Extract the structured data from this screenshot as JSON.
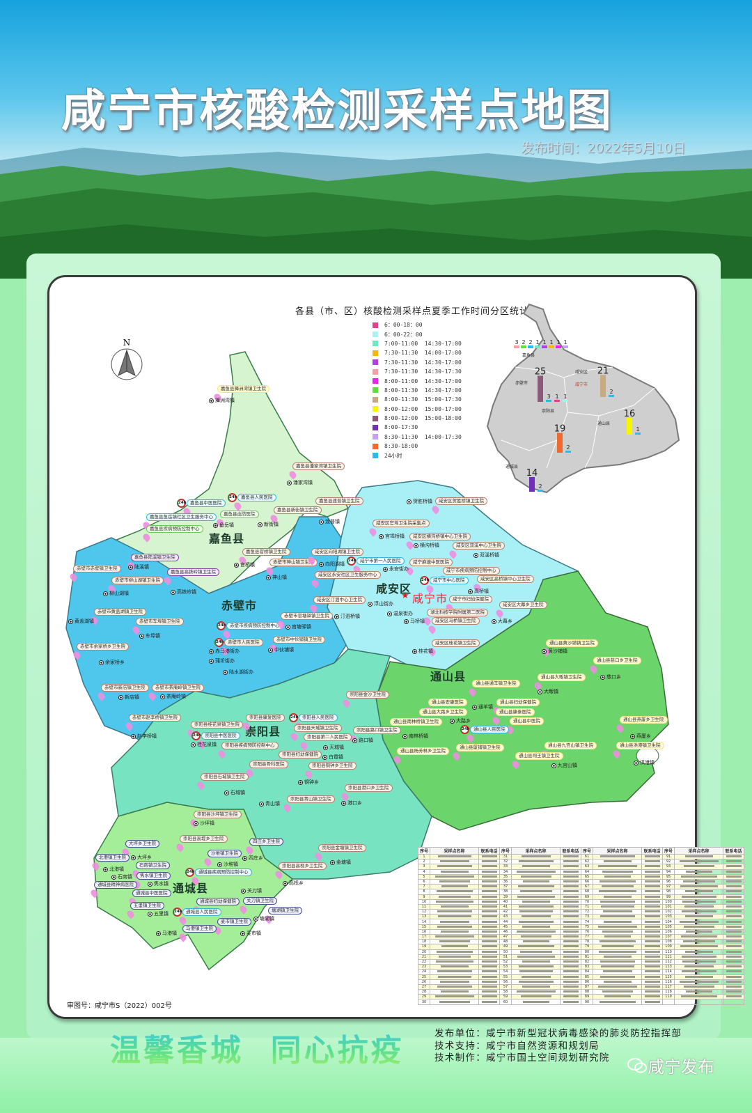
{
  "header": {
    "title": "咸宁市核酸检测采样点地图",
    "date": "发布时间：2022年5月10日"
  },
  "map": {
    "north": "N",
    "review_no": "审图号：咸宁市S（2022）002号",
    "region_colors": {
      "jiayu": "#d6f4cf",
      "chibi": "#4fc6ec",
      "xianan": "#a9f0f6",
      "tongshan": "#6bd46a",
      "chongyang": "#78e3c0",
      "tongcheng": "#a4ee9a"
    },
    "counties": [
      "嘉鱼县",
      "赤壁市",
      "咸安区",
      "咸宁市",
      "通山县",
      "崇阳县",
      "通城县"
    ],
    "towns": [
      "簰洲湾镇",
      "潘家湾镇",
      "新街镇",
      "渡普镇",
      "鱼岳镇",
      "官桥镇",
      "陆溪镇",
      "高铁岭镇",
      "柳山湖镇",
      "黄盖湖镇",
      "车埠镇",
      "中伙铺镇",
      "官塘驿镇",
      "余家桥乡",
      "神山镇",
      "赵李桥镇",
      "官埠桥镇",
      "贺胜桥镇",
      "横沟桥镇",
      "双溪桥镇",
      "向阳湖镇",
      "永安街办",
      "高桥镇",
      "汀泗桥镇",
      "浮山街办",
      "温泉街办",
      "马桥镇",
      "大幕乡",
      "桂花镇",
      "南林桥镇",
      "大路乡",
      "通羊镇",
      "大畈镇",
      "黄沙铺镇",
      "慈口乡",
      "燕厦乡",
      "九宫山镇",
      "洪港镇",
      "路口镇",
      "天城镇",
      "白霓镇",
      "桂花泉镇",
      "铜钟乡",
      "石城镇",
      "青山镇",
      "港口乡",
      "沙坪镇",
      "大坪乡",
      "北港镇",
      "石南镇",
      "隽水镇",
      "五里镇",
      "关刀镇",
      "塘湖镇",
      "麦市镇",
      "马港镇",
      "沙堆镇",
      "四庄乡",
      "高枧乡",
      "金塘镇",
      "赤马港街办",
      "蒲圻街办",
      "陆水湖街办",
      "茶庵岭镇",
      "新店镇"
    ],
    "sites": [
      {
        "name": "嘉鱼县簰洲湾镇卫生院",
        "type": "y"
      },
      {
        "name": "嘉鱼县潘家湾镇卫生院",
        "type": "b"
      },
      {
        "name": "嘉鱼县中医医院",
        "type": "c",
        "h24": "24h"
      },
      {
        "name": "嘉鱼县人民医院",
        "type": "c",
        "h24": "24h"
      },
      {
        "name": "嘉鱼县渡普镇卫生院",
        "type": "b"
      },
      {
        "name": "嘉鱼县新街镇卫生院",
        "type": "b"
      },
      {
        "name": "嘉鱼县鱼岳镇社区卫生服务中心",
        "type": "c"
      },
      {
        "name": "嘉鱼县血防医院",
        "type": "g"
      },
      {
        "name": "嘉鱼县疾病预防控制中心",
        "type": "g"
      },
      {
        "name": "嘉鱼县官桥镇卫生院",
        "type": "b"
      },
      {
        "name": "嘉鱼县陆溪镇卫生院",
        "type": "p"
      },
      {
        "name": "赤壁市赤壁镇卫生院",
        "type": "b"
      },
      {
        "name": "嘉鱼县高铁岭镇卫生院",
        "type": "p"
      },
      {
        "name": "赤壁市柳山湖镇卫生院",
        "type": "b"
      },
      {
        "name": "赤壁市神山镇卫生院",
        "type": "b"
      },
      {
        "name": "赤壁市黄盖湖镇卫生院",
        "type": "b"
      },
      {
        "name": "赤壁市车埠镇卫生院",
        "type": "b"
      },
      {
        "name": "赤壁市疾病预防控制中心",
        "type": "c",
        "h24": "24h"
      },
      {
        "name": "赤壁市官塘驿镇卫生院",
        "type": "b"
      },
      {
        "name": "赤壁市人民医院",
        "type": "b",
        "h24": "24h"
      },
      {
        "name": "赤壁市中伙铺镇卫生院",
        "type": "b"
      },
      {
        "name": "赤壁市余家桥乡卫生院",
        "type": "b"
      },
      {
        "name": "赤壁市新店镇卫生院",
        "type": "b"
      },
      {
        "name": "赤壁市茶庵岭镇卫生院",
        "type": "b"
      },
      {
        "name": "咸安区贺胜桥镇卫生院",
        "type": "b"
      },
      {
        "name": "咸安区官埠卫生院采集点",
        "type": "b"
      },
      {
        "name": "咸安区横沟桥镇中心卫生院",
        "type": "b"
      },
      {
        "name": "咸安区双溪中心卫生院",
        "type": "b"
      },
      {
        "name": "咸安区向阳湖镇卫生院",
        "type": "b"
      },
      {
        "name": "咸宁市第一人民医院",
        "type": "c",
        "h24": "24h"
      },
      {
        "name": "咸宁麻塘中医医院",
        "type": "b"
      },
      {
        "name": "咸宁市疾病预防控制中心",
        "type": "b"
      },
      {
        "name": "咸安区永安社区卫生服务中心",
        "type": "b"
      },
      {
        "name": "咸宁市中心医院",
        "type": "c",
        "h24": "24h"
      },
      {
        "name": "咸安区高桥镇中心卫生院",
        "type": "b"
      },
      {
        "name": "咸安区汀泗中心卫生院",
        "type": "b"
      },
      {
        "name": "咸宁市妇幼保健院",
        "type": "b"
      },
      {
        "name": "湖北科技学院附属第二医院",
        "type": "b"
      },
      {
        "name": "咸安区大幕乡卫生院",
        "type": "b"
      },
      {
        "name": "咸安区马桥镇卫生院",
        "type": "b"
      },
      {
        "name": "咸安区桂花镇卫生院",
        "type": "b"
      },
      {
        "name": "通山县黄沙铺镇卫生院",
        "type": "y"
      },
      {
        "name": "通山县慈口乡卫生院",
        "type": "y"
      },
      {
        "name": "通山县大畈镇卫生院",
        "type": "y"
      },
      {
        "name": "通山县通羊镇卫生院",
        "type": "y"
      },
      {
        "name": "通山县安康医院",
        "type": "y"
      },
      {
        "name": "通山县妇幼保健院",
        "type": "y"
      },
      {
        "name": "通山县大路乡卫生院",
        "type": "y"
      },
      {
        "name": "通山县康泰医院",
        "type": "y"
      },
      {
        "name": "通山县南林桥镇卫生院",
        "type": "y"
      },
      {
        "name": "通山县中医院",
        "type": "y"
      },
      {
        "name": "通山县人民医院",
        "type": "c",
        "h24": "24h"
      },
      {
        "name": "通山县燕厦乡卫生院",
        "type": "y"
      },
      {
        "name": "通山县九宫山镇卫生院",
        "type": "y"
      },
      {
        "name": "通山县洪港镇卫生院",
        "type": "y"
      },
      {
        "name": "通山县厦铺镇卫生院",
        "type": "y"
      },
      {
        "name": "通山县闯王镇卫生院",
        "type": "y"
      },
      {
        "name": "通山县杨芳林乡卫生院",
        "type": "y"
      },
      {
        "name": "崇阳县金沙卫生院",
        "type": "b"
      },
      {
        "name": "崇阳县路口镇卫生院",
        "type": "b"
      },
      {
        "name": "赤壁市赵李桥镇卫生院",
        "type": "b"
      },
      {
        "name": "崇阳县康复医院",
        "type": "b"
      },
      {
        "name": "崇阳县人民医院",
        "type": "c",
        "h24": "24h"
      },
      {
        "name": "崇阳县桂花泉镇卫生院",
        "type": "b"
      },
      {
        "name": "崇阳县天城镇卫生院",
        "type": "b"
      },
      {
        "name": "崇阳县疾病预防控制中心",
        "type": "b"
      },
      {
        "name": "崇阳县第二人民医院",
        "type": "b"
      },
      {
        "name": "崇阳县中医医院",
        "type": "c",
        "h24": "24h"
      },
      {
        "name": "崇阳县妇幼保健院",
        "type": "b"
      },
      {
        "name": "崇阳县骨科医院",
        "type": "b"
      },
      {
        "name": "崇阳县铜钟乡卫生院",
        "type": "b"
      },
      {
        "name": "崇阳县石城镇卫生院",
        "type": "b"
      },
      {
        "name": "崇阳县港口乡卫生院",
        "type": "b"
      },
      {
        "name": "崇阳县青山镇卫生院",
        "type": "b"
      },
      {
        "name": "崇阳县沙坪镇卫生院",
        "type": "b"
      },
      {
        "name": "大坪乡卫生院",
        "type": "n"
      },
      {
        "name": "崇阳县高堤乡卫生院",
        "type": "b"
      },
      {
        "name": "四庄乡卫生院",
        "type": "n"
      },
      {
        "name": "崇阳县金塘镇卫生院",
        "type": "b"
      },
      {
        "name": "北港镇卫生院",
        "type": "n"
      },
      {
        "name": "沙堆镇卫生院",
        "type": "n"
      },
      {
        "name": "石南镇卫生院",
        "type": "n"
      },
      {
        "name": "崇阳县高枧乡卫生院",
        "type": "b"
      },
      {
        "name": "隽水镇卫生院",
        "type": "n"
      },
      {
        "name": "通城县疾病预防控制中心",
        "type": "c",
        "h24": "24h"
      },
      {
        "name": "通城县精神病医院",
        "type": "n"
      },
      {
        "name": "通城县妇幼保健院",
        "type": "n"
      },
      {
        "name": "通城县中医医院",
        "type": "n"
      },
      {
        "name": "关刀镇卫生院",
        "type": "n"
      },
      {
        "name": "五里镇卫生院",
        "type": "n"
      },
      {
        "name": "通城县人民医院",
        "type": "c",
        "h24": "24h"
      },
      {
        "name": "塘湖镇卫生院",
        "type": "n"
      },
      {
        "name": "麦市镇卫生院",
        "type": "n"
      },
      {
        "name": "马港镇卫生院",
        "type": "n"
      }
    ]
  },
  "legend": {
    "title": "各县（市、区）核酸检测采样点夏季工作时间分区统计",
    "items": [
      {
        "label": "6：00-18：00",
        "color": "#e0408c"
      },
      {
        "label": "6：00-22：00",
        "color": "#a8f2f2"
      },
      {
        "label": "7:00-11:00  14:30-17:00",
        "color": "#6ee8c8"
      },
      {
        "label": "7:30-11:30  14:00-17:00",
        "color": "#f6b800"
      },
      {
        "label": "7:30-11:30  14:30-17:00",
        "color": "#b040e0"
      },
      {
        "label": "7:30-11:30  14:30-17:30",
        "color": "#f4a0a8"
      },
      {
        "label": "8:00-11:00  14:30-17:00",
        "color": "#f020f0"
      },
      {
        "label": "8:00-11:30  14:30-17:00",
        "color": "#60e040"
      },
      {
        "label": "8:00-11:30  15:00-17:30",
        "color": "#c8aa80"
      },
      {
        "label": "8:00-12:00  15:00-17:00",
        "color": "#f6f600"
      },
      {
        "label": "8:00-12:00  15:00-18:00",
        "color": "#8a5a78"
      },
      {
        "label": "8:00-17:30",
        "color": "#7030b8"
      },
      {
        "label": "8:30-11:30  14:00-17:30",
        "color": "#c8a0f0"
      },
      {
        "label": "8:30-18:00",
        "color": "#f06a30"
      },
      {
        "label": "24小时",
        "color": "#20c0e8"
      }
    ]
  },
  "inset": {
    "places": [
      "嘉鱼县",
      "赤壁市",
      "咸安区",
      "咸宁市",
      "通山县",
      "崇阳县",
      "通城县"
    ],
    "groups": [
      {
        "county": "嘉鱼县",
        "bars": [
          {
            "value": 3,
            "color": "#f4a0a8"
          },
          {
            "value": 2,
            "color": "#60e040"
          },
          {
            "value": 2,
            "color": "#20c0e8"
          },
          {
            "value": 1,
            "color": "#6ee8c8"
          },
          {
            "value": 1,
            "color": "#b040e0"
          },
          {
            "value": 1,
            "color": "#f6b800"
          },
          {
            "value": 1,
            "color": "#f020f0"
          },
          {
            "value": 1,
            "color": "#c8a0f0"
          }
        ]
      },
      {
        "county": "赤壁市",
        "bars": [
          {
            "value": 25,
            "color": "#8a5a78"
          },
          {
            "value": 3,
            "color": "#20c0e8"
          },
          {
            "value": 1,
            "color": "#e0408c"
          },
          {
            "value": 1,
            "color": "#a8f2f2"
          }
        ]
      },
      {
        "county": "咸安区",
        "bars": [
          {
            "value": 21,
            "color": "#c8aa80"
          },
          {
            "value": 2,
            "color": "#20c0e8"
          }
        ]
      },
      {
        "county": "通山县",
        "bars": [
          {
            "value": 16,
            "color": "#f6f600"
          },
          {
            "value": 1,
            "color": "#20c0e8"
          }
        ]
      },
      {
        "county": "崇阳县",
        "bars": [
          {
            "value": 19,
            "color": "#f06a30"
          },
          {
            "value": 2,
            "color": "#20c0e8"
          }
        ]
      },
      {
        "county": "通城县",
        "bars": [
          {
            "value": 14,
            "color": "#7030b8"
          },
          {
            "value": 2,
            "color": "#20c0e8"
          }
        ]
      }
    ]
  },
  "table": {
    "headers": [
      "序号",
      "采样点名称",
      "联系电话",
      "序号",
      "采样点名称",
      "联系电话",
      "序号",
      "采样点名称",
      "联系电话",
      "序号",
      "采样点名称",
      "联系电话"
    ]
  },
  "footer": {
    "slogan": "温馨香城  同心抗疫",
    "credits": [
      "发布单位：咸宁市新型冠状病毒感染的肺炎防控指挥部",
      "技术支持：咸宁市自然资源和规划局",
      "技术制作：咸宁市国土空间规划研究院"
    ],
    "watermark": "咸宁发布"
  }
}
